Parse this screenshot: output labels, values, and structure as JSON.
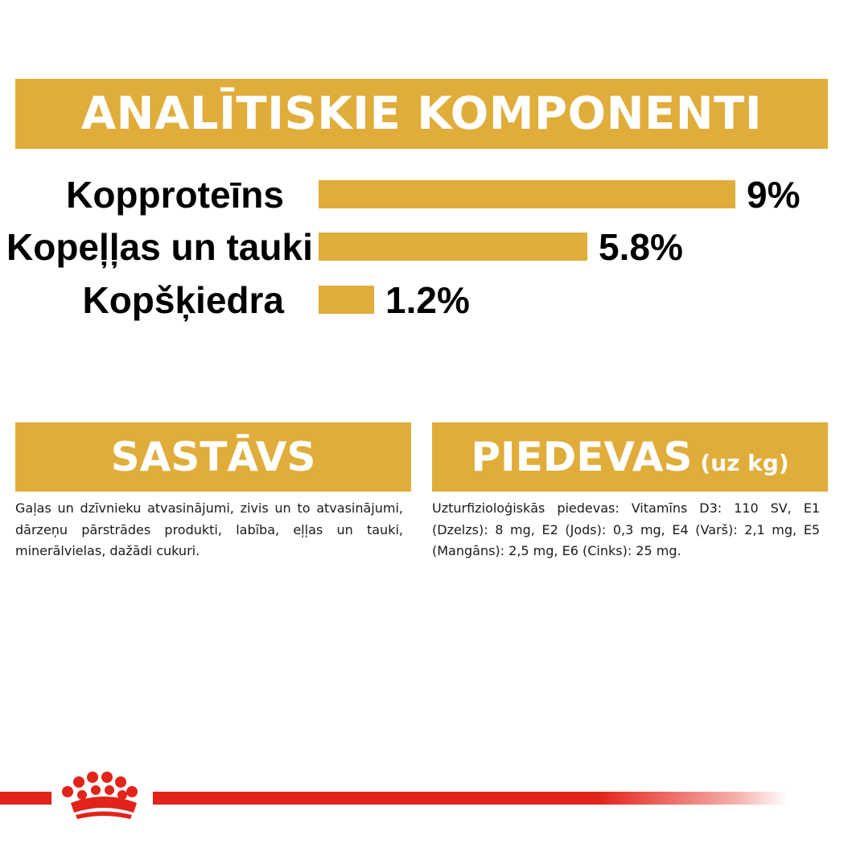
{
  "header": {
    "title": "ANALĪTISKIE KOMPONENTI"
  },
  "chart_data": {
    "type": "bar",
    "orientation": "horizontal",
    "categories": [
      "Kopproteīns",
      "Kopeļļas un tauki",
      "Kopšķiedra"
    ],
    "values": [
      9,
      5.8,
      1.2
    ],
    "value_labels": [
      "9%",
      "5.8%",
      "1.2%"
    ],
    "bar_color": "#e0ad3b",
    "title": "",
    "xlabel": "",
    "ylabel": "",
    "grid": false,
    "legend": "none"
  },
  "composition": {
    "heading": "SASTĀVS",
    "text": "Gaļas un dzīvnieku atvasinājumi, zivis un to atvasinājumi, dārzeņu pārstrādes produkti, labība, eļļas un tauki, minerālvielas, dažādi cukuri."
  },
  "additives": {
    "heading": "PIEDEVAS",
    "unit": "(uz kg)",
    "text": "Uzturfizioloģiskās piedevas: Vitamīns D3: 110 SV, E1 (Dzelzs): 8 mg, E2 (Jods): 0,3 mg, E4 (Varš): 2,1 mg, E5 (Mangāns): 2,5 mg, E6 (Cinks): 25 mg."
  },
  "brand": {
    "logo_icon": "royal-canin-crown-icon",
    "accent_color": "#e2231a"
  },
  "colors": {
    "banner": "#e0ad3b",
    "text": "#000000"
  }
}
